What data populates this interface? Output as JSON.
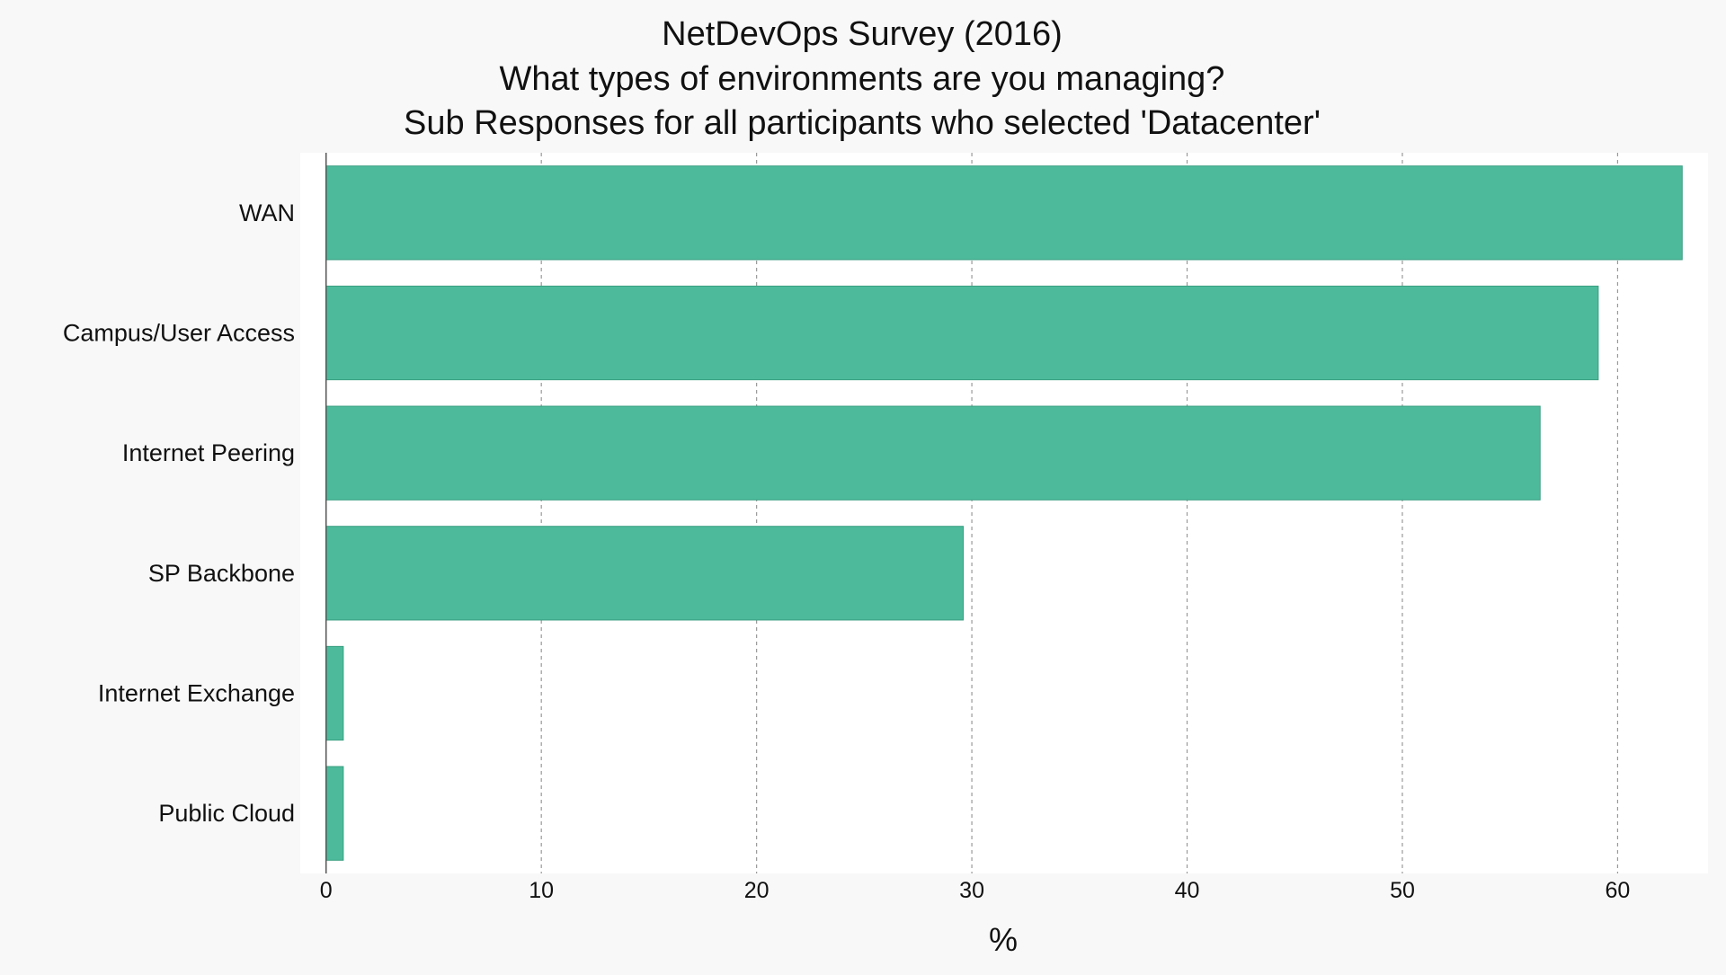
{
  "chart_data": {
    "type": "bar",
    "orientation": "horizontal",
    "title": "NetDevOps Survey (2016)",
    "subtitle_lines": [
      "What types of environments are you managing?",
      "Sub Responses for all participants who selected 'Datacenter'"
    ],
    "xlabel": "%",
    "ylabel": "",
    "categories": [
      "WAN",
      "Campus/User Access",
      "Internet Peering",
      "SP Backbone",
      "Internet Exchange",
      "Public Cloud"
    ],
    "values": [
      63.0,
      59.1,
      56.4,
      29.6,
      0.8,
      0.8
    ],
    "xlim": [
      -1.2,
      64.2
    ],
    "xticks": [
      0,
      10,
      20,
      30,
      40,
      50,
      60
    ],
    "xtick_labels": [
      "0",
      "10",
      "20",
      "30",
      "40",
      "50",
      "60"
    ],
    "grid": "vertical dashed",
    "legend": "none",
    "colors": {
      "bar": "#4dbb9b",
      "bar_edge": "#3a9e80",
      "plot_background": "#ffffff",
      "figure_background": "#f8f8f8",
      "grid": "#999999",
      "text": "#111111"
    }
  }
}
